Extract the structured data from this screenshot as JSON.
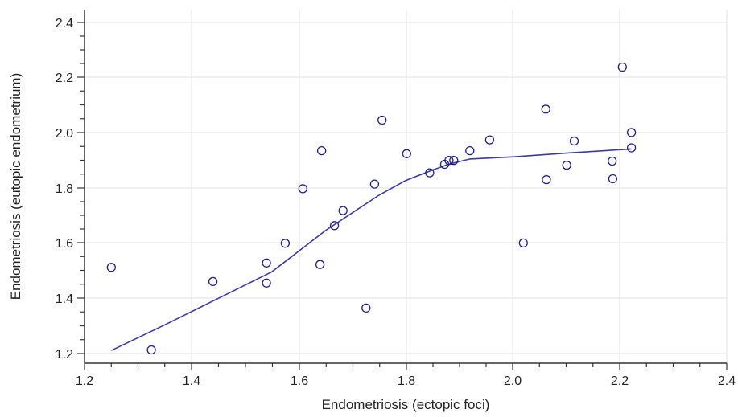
{
  "chart_data": {
    "type": "scatter",
    "xlabel": "Endometriosis (ectopic foci)",
    "ylabel": "Endometriosis (eutopic endometrium)",
    "xlim": [
      1.2,
      2.4
    ],
    "ylim": [
      1.2,
      2.4
    ],
    "x_ticks": [
      "1.2",
      "1.4",
      "1.6",
      "1.8",
      "2.0",
      "2.2",
      "2.4"
    ],
    "y_ticks": [
      "1.2",
      "1.4",
      "1.6",
      "1.8",
      "2.0",
      "2.2",
      "2.4"
    ],
    "grid": true,
    "colors": {
      "points": "#1f1f8a",
      "line": "#3a3aa0"
    },
    "points": [
      {
        "x": 1.25,
        "y": 1.525
      },
      {
        "x": 1.325,
        "y": 1.245
      },
      {
        "x": 1.44,
        "y": 1.477
      },
      {
        "x": 1.54,
        "y": 1.54
      },
      {
        "x": 1.54,
        "y": 1.472
      },
      {
        "x": 1.575,
        "y": 1.607
      },
      {
        "x": 1.608,
        "y": 1.792
      },
      {
        "x": 1.64,
        "y": 1.535
      },
      {
        "x": 1.643,
        "y": 1.921
      },
      {
        "x": 1.667,
        "y": 1.667
      },
      {
        "x": 1.683,
        "y": 1.718
      },
      {
        "x": 1.726,
        "y": 1.387
      },
      {
        "x": 1.742,
        "y": 1.808
      },
      {
        "x": 1.756,
        "y": 2.025
      },
      {
        "x": 1.802,
        "y": 1.911
      },
      {
        "x": 1.845,
        "y": 1.846
      },
      {
        "x": 1.873,
        "y": 1.875
      },
      {
        "x": 1.881,
        "y": 1.888
      },
      {
        "x": 1.89,
        "y": 1.888
      },
      {
        "x": 1.92,
        "y": 1.921
      },
      {
        "x": 1.957,
        "y": 1.958
      },
      {
        "x": 2.02,
        "y": 1.608
      },
      {
        "x": 2.062,
        "y": 2.062
      },
      {
        "x": 2.063,
        "y": 1.823
      },
      {
        "x": 2.101,
        "y": 1.872
      },
      {
        "x": 2.115,
        "y": 1.954
      },
      {
        "x": 2.186,
        "y": 1.886
      },
      {
        "x": 2.187,
        "y": 1.826
      },
      {
        "x": 2.205,
        "y": 2.205
      },
      {
        "x": 2.222,
        "y": 1.983
      },
      {
        "x": 2.222,
        "y": 1.931
      }
    ],
    "fit_line": [
      {
        "x": 1.25,
        "y": 1.243
      },
      {
        "x": 1.35,
        "y": 1.33
      },
      {
        "x": 1.45,
        "y": 1.42
      },
      {
        "x": 1.55,
        "y": 1.51
      },
      {
        "x": 1.65,
        "y": 1.65
      },
      {
        "x": 1.75,
        "y": 1.77
      },
      {
        "x": 1.8,
        "y": 1.82
      },
      {
        "x": 1.85,
        "y": 1.855
      },
      {
        "x": 1.88,
        "y": 1.875
      },
      {
        "x": 1.92,
        "y": 1.893
      },
      {
        "x": 2.0,
        "y": 1.9
      },
      {
        "x": 2.1,
        "y": 1.913
      },
      {
        "x": 2.222,
        "y": 1.927
      }
    ]
  }
}
